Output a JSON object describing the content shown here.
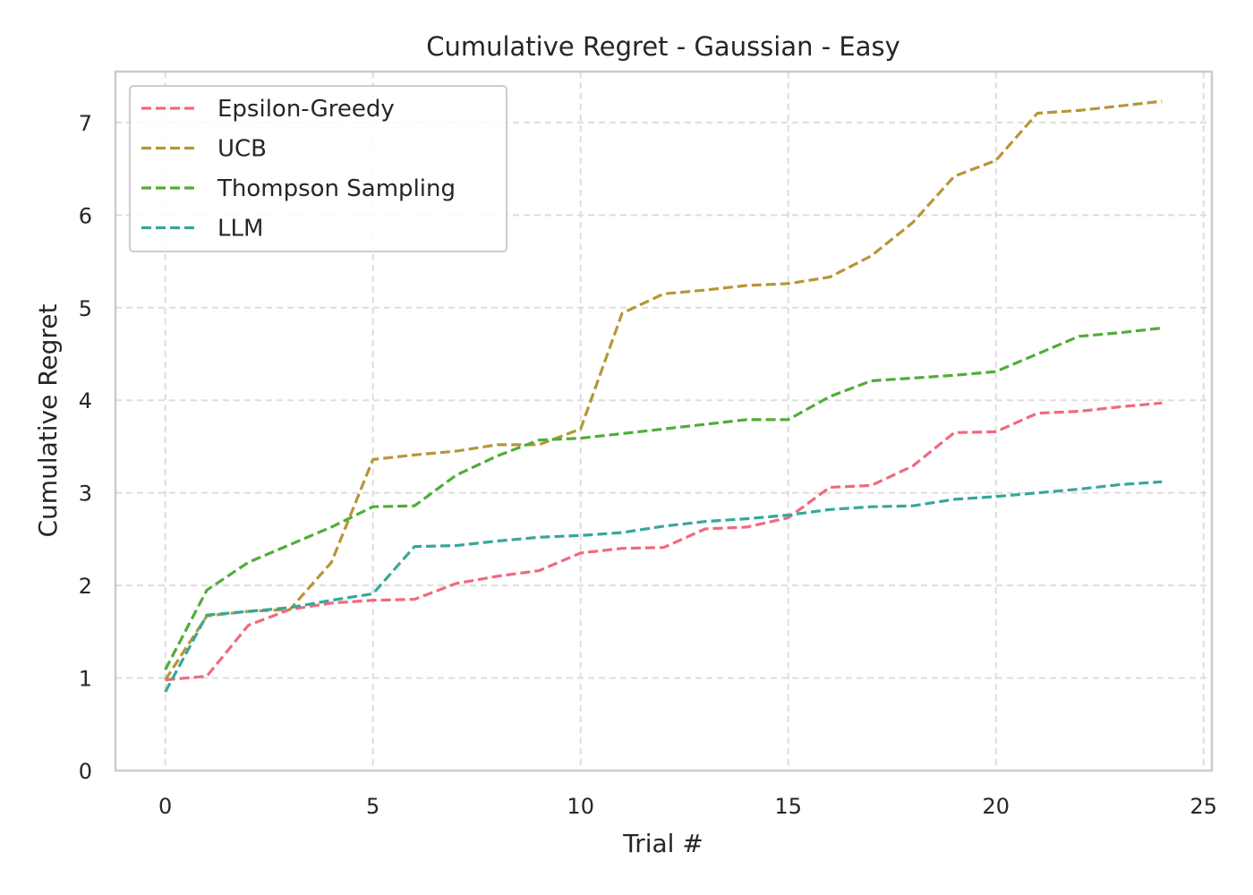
{
  "chart_data": {
    "type": "line",
    "title": "Cumulative Regret - Gaussian - Easy",
    "xlabel": "Trial #",
    "ylabel": "Cumulative Regret",
    "xlim": [
      -1.2,
      25.2
    ],
    "ylim": [
      0,
      7.55
    ],
    "xticks": [
      0,
      5,
      10,
      15,
      20,
      25
    ],
    "yticks": [
      0,
      1,
      2,
      3,
      4,
      5,
      6,
      7
    ],
    "grid": true,
    "grid_style": "dashed",
    "line_style": "dashed",
    "legend_position": "top-left",
    "x": [
      0,
      1,
      2,
      3,
      4,
      5,
      6,
      7,
      8,
      9,
      10,
      11,
      12,
      13,
      14,
      15,
      16,
      17,
      18,
      19,
      20,
      21,
      22,
      23,
      24
    ],
    "series": [
      {
        "name": "Epsilon-Greedy",
        "color": "#f0697f",
        "values": [
          0.98,
          1.02,
          1.57,
          1.74,
          1.81,
          1.84,
          1.85,
          2.02,
          2.1,
          2.16,
          2.35,
          2.4,
          2.41,
          2.61,
          2.63,
          2.73,
          3.06,
          3.08,
          3.29,
          3.65,
          3.66,
          3.86,
          3.88,
          3.93,
          3.97
        ]
      },
      {
        "name": "UCB",
        "color": "#b89535",
        "values": [
          0.98,
          1.67,
          1.72,
          1.74,
          2.25,
          3.36,
          3.41,
          3.45,
          3.52,
          3.52,
          3.69,
          4.94,
          5.15,
          5.19,
          5.24,
          5.26,
          5.33,
          5.56,
          5.92,
          6.42,
          6.59,
          7.1,
          7.13,
          7.18,
          7.23
        ]
      },
      {
        "name": "Thompson Sampling",
        "color": "#50ad3a",
        "values": [
          1.09,
          1.95,
          2.25,
          2.44,
          2.63,
          2.85,
          2.86,
          3.19,
          3.4,
          3.57,
          3.59,
          3.64,
          3.69,
          3.74,
          3.79,
          3.79,
          4.04,
          4.21,
          4.24,
          4.27,
          4.31,
          4.5,
          4.69,
          4.73,
          4.78
        ]
      },
      {
        "name": "LLM",
        "color": "#36a89a",
        "values": [
          0.85,
          1.68,
          1.72,
          1.76,
          1.84,
          1.91,
          2.42,
          2.43,
          2.48,
          2.52,
          2.54,
          2.57,
          2.64,
          2.69,
          2.72,
          2.76,
          2.82,
          2.85,
          2.86,
          2.93,
          2.96,
          3.0,
          3.04,
          3.09,
          3.12
        ]
      }
    ]
  }
}
